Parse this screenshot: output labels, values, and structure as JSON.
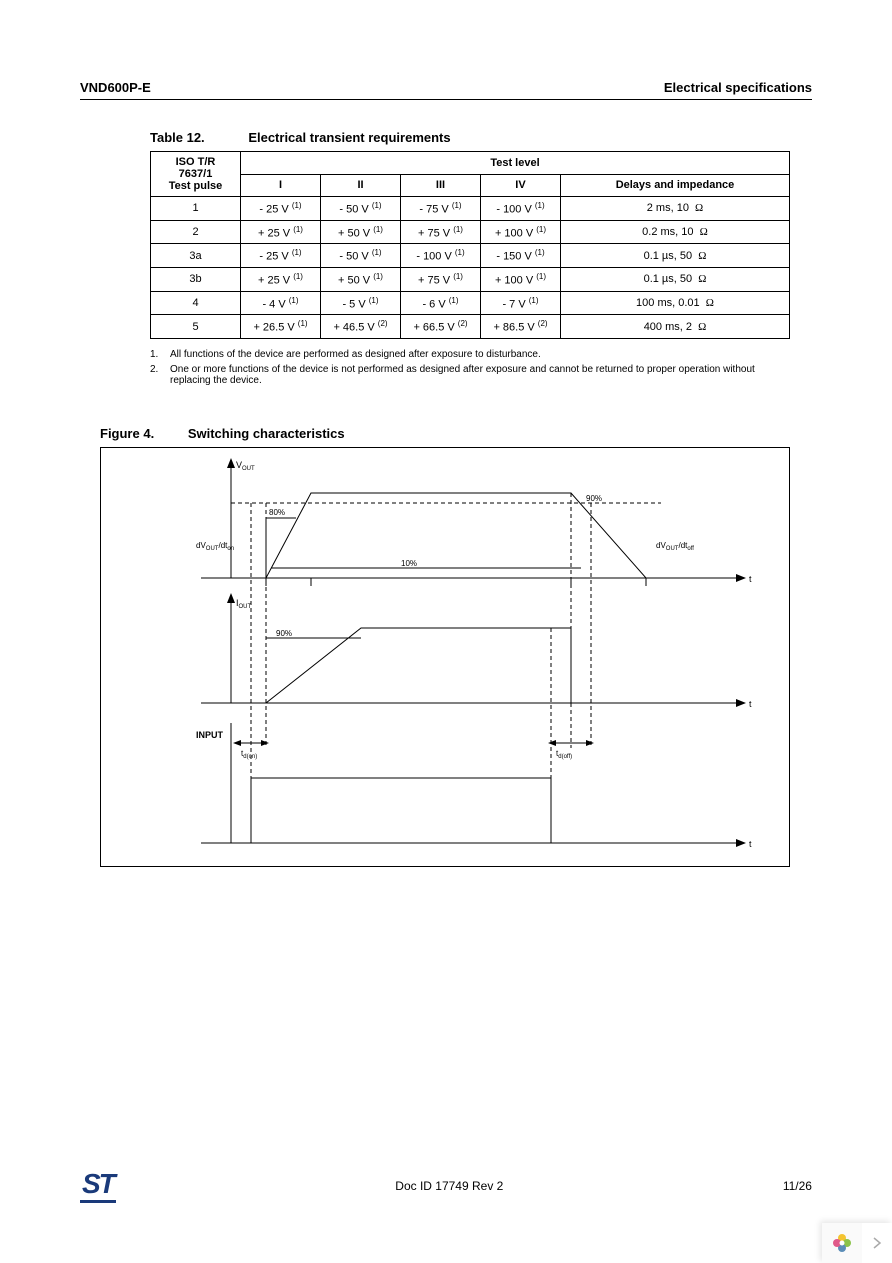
{
  "header": {
    "left": "VND600P-E",
    "right": "Electrical specifications"
  },
  "table": {
    "number": "Table 12.",
    "title": "Electrical transient requirements",
    "corner_header_lines": [
      "ISO T/R",
      "7637/1",
      "Test pulse"
    ],
    "span_header": "Test level",
    "col_labels": [
      "I",
      "II",
      "III",
      "IV",
      "Delays and impedance"
    ],
    "rows": [
      {
        "pulse": "1",
        "c1": "- 25 V",
        "s1": "(1)",
        "c2": "- 50 V",
        "s2": "(1)",
        "c3": "- 75 V",
        "s3": "(1)",
        "c4": "- 100 V",
        "s4": "(1)",
        "delay": "2 ms, 10",
        "unit": "Ω"
      },
      {
        "pulse": "2",
        "c1": "+ 25 V",
        "s1": "(1)",
        "c2": "+ 50 V",
        "s2": "(1)",
        "c3": "+ 75 V",
        "s3": "(1)",
        "c4": "+ 100 V",
        "s4": "(1)",
        "delay": "0.2 ms, 10",
        "unit": "Ω"
      },
      {
        "pulse": "3a",
        "c1": "- 25 V",
        "s1": "(1)",
        "c2": "- 50 V",
        "s2": "(1)",
        "c3": "- 100 V",
        "s3": "(1)",
        "c4": "- 150 V",
        "s4": "(1)",
        "delay": "0.1 µs, 50",
        "unit": "Ω"
      },
      {
        "pulse": "3b",
        "c1": "+ 25 V",
        "s1": "(1)",
        "c2": "+ 50 V",
        "s2": "(1)",
        "c3": "+ 75 V",
        "s3": "(1)",
        "c4": "+ 100 V",
        "s4": "(1)",
        "delay": "0.1 µs, 50",
        "unit": "Ω"
      },
      {
        "pulse": "4",
        "c1": "- 4 V",
        "s1": "(1)",
        "c2": "- 5 V",
        "s2": "(1)",
        "c3": "- 6 V",
        "s3": "(1)",
        "c4": "- 7 V",
        "s4": "(1)",
        "delay": "100 ms, 0.01",
        "unit": "Ω"
      },
      {
        "pulse": "5",
        "c1": "+ 26.5 V",
        "s1": "(1)",
        "c2": "+ 46.5 V",
        "s2": "(2)",
        "c3": "+ 66.5 V",
        "s3": "(2)",
        "c4": "+ 86.5 V",
        "s4": "(2)",
        "delay": "400 ms, 2",
        "unit": "Ω"
      }
    ],
    "footnotes": [
      {
        "num": "1.",
        "text": "All functions of the device are performed as designed after exposure to disturbance."
      },
      {
        "num": "2.",
        "text": "One or more functions of the device is not performed as designed after exposure and cannot be returned to proper operation without replacing the device."
      }
    ]
  },
  "figure": {
    "number": "Figure 4.",
    "title": "Switching characteristics",
    "labels": {
      "vout": "V",
      "vout_sub": "OUT",
      "iout": "I",
      "iout_sub": "OUT",
      "input": "INPUT",
      "p80": "80%",
      "p90a": "90%",
      "p90b": "90%",
      "p10": "10%",
      "dvdt_on": "dV",
      "dvdt_on2": "/dt",
      "dvdt_on_sub": "OUT",
      "dvdt_on_sub2": "on",
      "dvdt_off": "dV",
      "dvdt_off2": "/dt",
      "dvdt_off_sub": "OUT",
      "dvdt_off_sub2": "off",
      "t_axis": "t",
      "td_on": "t",
      "td_on_sub": "d(on)",
      "td_off": "t",
      "td_off_sub": "d(off)"
    },
    "style": {
      "stroke": "#000000",
      "stroke_width": 1,
      "dash": "4,3",
      "font_size_label": 9,
      "font_size_sub": 6
    }
  },
  "footer": {
    "doc": "Doc ID 17749 Rev 2",
    "page": "11/26",
    "logo_text": "ST"
  }
}
